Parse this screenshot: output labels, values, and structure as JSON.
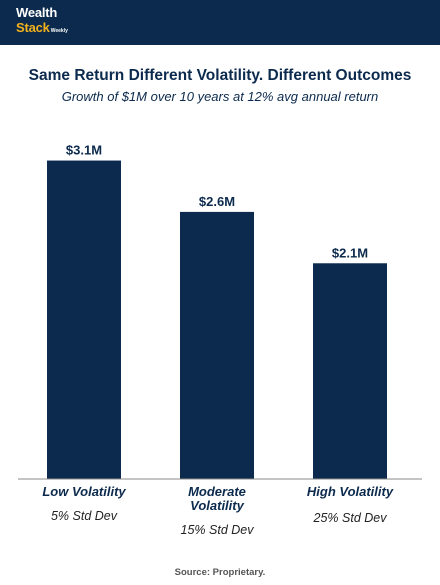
{
  "header": {
    "brand_line1": "Wealth",
    "brand_line2": "Stack",
    "brand_small": "Weekly",
    "background": "#0c2a4d",
    "accent": "#f2b21b"
  },
  "chart_data": {
    "type": "bar",
    "title": "Same Return Different Volatility. Different Outcomes",
    "subtitle": "Growth of $1M over 10 years at 12% avg annual return",
    "categories": [
      "Low Volatility",
      "Moderate Volatility",
      "High Volatility"
    ],
    "category_sublabels": [
      "5% Std Dev",
      "15% Std Dev",
      "25% Std Dev"
    ],
    "values": [
      3.1,
      2.6,
      2.1
    ],
    "value_labels": [
      "$3.1M",
      "$2.6M",
      "$2.1M"
    ],
    "units": "$M",
    "ylim": [
      0,
      3.3
    ],
    "grid": false,
    "legend": "none",
    "bar_color": "#0c2a4d",
    "source": "Source: Proprietary."
  }
}
